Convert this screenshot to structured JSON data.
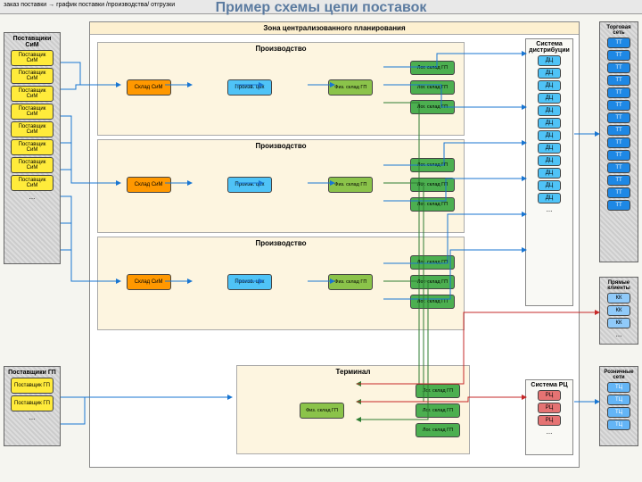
{
  "topbar_text": "заказ поставки → график поставки /производства/ отгрузки",
  "title": "Пример схемы цепи поставок",
  "suppliers_sim": {
    "label": "Поставщики СиМ",
    "items": [
      "Поставщик СиМ",
      "Поставщик СиМ",
      "Поставщик СиМ",
      "Поставщик СиМ",
      "Поставщик СиМ",
      "Поставщик СиМ",
      "Поставщик СиМ",
      "Поставщик СиМ"
    ]
  },
  "suppliers_gp": {
    "label": "Поставщики ГП",
    "items": [
      "Поставщик ГП",
      "Поставщик ГП"
    ]
  },
  "planning_zone": "Зона централизованного планирования",
  "production_label": "Производство",
  "terminal_label": "Терминал",
  "warehouse_sim": "Склад СиМ",
  "prod_shop": "Произв. цех",
  "phys_gp": "Физ. склад ГП",
  "log_gp": "Лог. склад ГП",
  "dist_system": {
    "label": "Система дистрибуции",
    "item": "ДЦ",
    "count": 12
  },
  "rc_system": {
    "label": "Система РЦ",
    "item": "РЦ",
    "count": 3
  },
  "trade_net": {
    "label": "Торговая сеть",
    "item": "ТТ",
    "count": 14
  },
  "direct_clients": {
    "label": "Прямые клиенты",
    "item": "КК",
    "count": 3
  },
  "retail_net": {
    "label": "Розничные сети",
    "item": "ТЦ",
    "count": 4
  },
  "ellipsis": "...",
  "colors": {
    "title": "#5b7ba0",
    "yellow": "#ffeb3b",
    "orange": "#ff9800",
    "cyan": "#4fc3f7",
    "lime": "#8bc34a",
    "green": "#4caf50",
    "blue": "#1e88e5",
    "red": "#e57373",
    "lightblue": "#90caf9",
    "zone_bg": "#fdf0d0"
  }
}
